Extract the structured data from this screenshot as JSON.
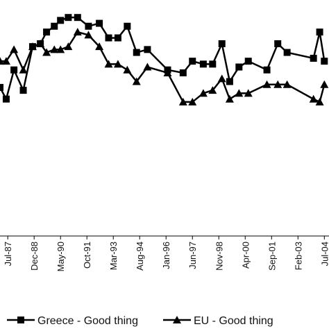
{
  "chart_data": {
    "type": "line",
    "x": [
      "Feb-87",
      "Jun-87",
      "Nov-87",
      "May-88",
      "Nov-88",
      "Apr-89",
      "Aug-89",
      "Jan-90",
      "May-90",
      "Oct-90",
      "Apr-91",
      "Nov-91",
      "Jun-92",
      "Dec-92",
      "Jun-93",
      "Dec-93",
      "Jun-94",
      "Jan-95",
      "Feb-96",
      "Dec-96",
      "Jun-97",
      "Jan-98",
      "Jul-98",
      "Jan-99",
      "Jun-99",
      "Dec-99",
      "Jun-00",
      "Jun-01",
      "Jan-02",
      "Jul-02",
      "Dec-03",
      "Apr-04",
      "Jul-04"
    ],
    "series": [
      {
        "name": "Greece - Good thing",
        "color": "#000000",
        "marker": "square",
        "values": [
          51,
          47,
          57,
          50,
          65,
          66,
          70,
          72,
          74,
          75,
          75,
          72,
          73,
          68,
          68,
          72,
          63,
          64,
          57,
          56,
          60,
          59,
          59,
          66,
          53,
          58,
          60,
          57,
          66,
          63,
          61,
          70,
          60
        ]
      },
      {
        "name": "EU - Good thing",
        "color": "#000000",
        "marker": "triangle",
        "values": [
          60,
          60,
          64,
          57,
          65,
          66,
          63,
          64,
          64,
          65,
          70,
          69,
          65,
          59,
          59,
          57,
          53,
          58,
          56,
          46,
          46,
          49,
          50,
          54,
          47,
          49,
          49,
          52,
          52,
          52,
          47,
          46,
          52
        ]
      }
    ],
    "xlim": [
      "Feb-87",
      "Oct-04"
    ],
    "xticks": [
      "Jul-87",
      "Dec-88",
      "May-90",
      "Oct-91",
      "Mar-93",
      "Aug-94",
      "Jan-96",
      "Jun-97",
      "Nov-98",
      "Apr-00",
      "Sep-01",
      "Feb-03",
      "Jul-04"
    ],
    "ylim": [
      0,
      81
    ]
  }
}
